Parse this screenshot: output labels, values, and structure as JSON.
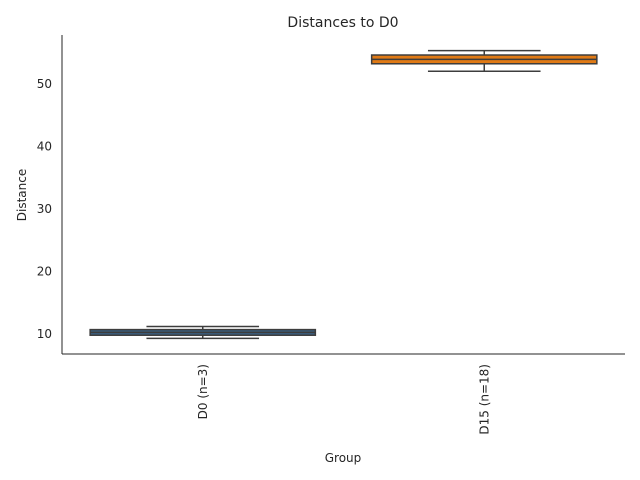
{
  "chart_data": {
    "type": "box",
    "title": "Distances to D0",
    "xlabel": "Group",
    "ylabel": "Distance",
    "ylim": [
      6.8,
      57.8
    ],
    "yticks": [
      10,
      20,
      30,
      40,
      50
    ],
    "grid": false,
    "categories": [
      "D0 (n=3)",
      "D15 (n=18)"
    ],
    "boxes": [
      {
        "category": "D0 (n=3)",
        "min": 9.3,
        "q1": 9.8,
        "median": 10.25,
        "q3": 10.7,
        "max": 11.2,
        "color": "#3a5f80"
      },
      {
        "category": "D15 (n=18)",
        "min": 52.0,
        "q1": 53.2,
        "median": 53.9,
        "q3": 54.6,
        "max": 55.3,
        "color": "#e07a15"
      }
    ]
  }
}
